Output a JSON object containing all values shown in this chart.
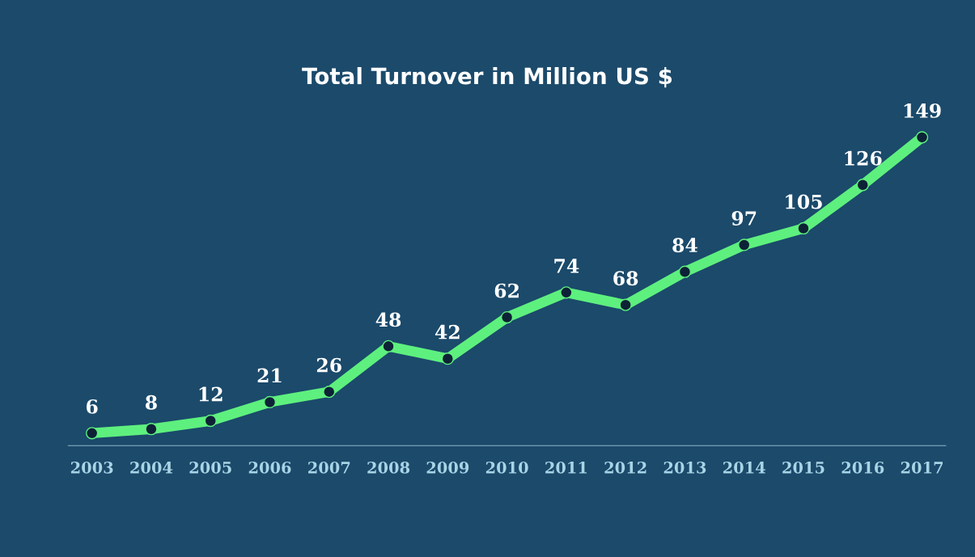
{
  "chart_data": {
    "type": "line",
    "title": "Total Turnover in Million US $",
    "categories": [
      "2003",
      "2004",
      "2005",
      "2006",
      "2007",
      "2008",
      "2009",
      "2010",
      "2011",
      "2012",
      "2013",
      "2014",
      "2015",
      "2016",
      "2017"
    ],
    "values": [
      6,
      8,
      12,
      21,
      26,
      48,
      42,
      62,
      74,
      68,
      84,
      97,
      105,
      126,
      149
    ],
    "color": "#5ef07e",
    "marker": "circle",
    "data_labels": true
  }
}
